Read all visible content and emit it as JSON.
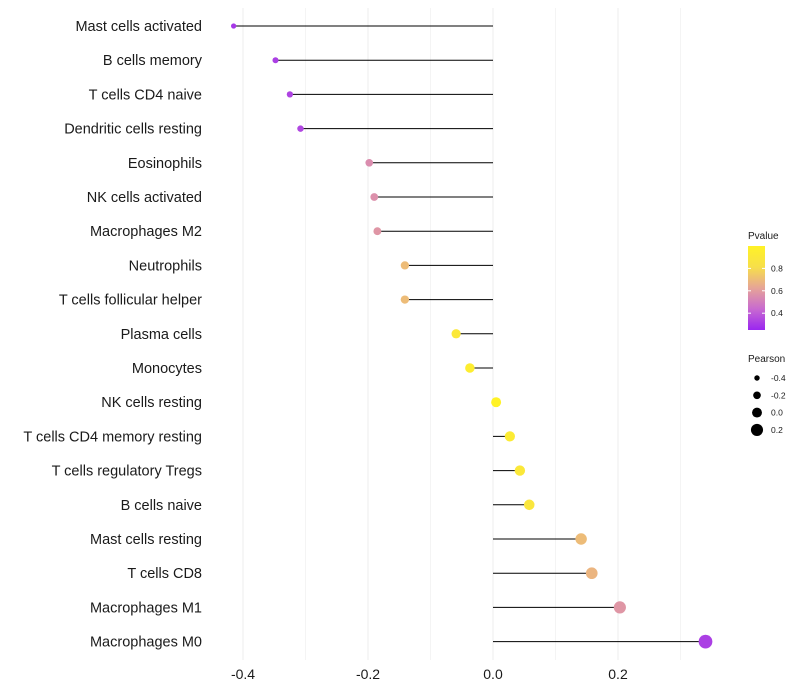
{
  "chart_data": {
    "type": "lollipop",
    "categories": [
      "Mast cells activated",
      "B cells memory",
      "T cells CD4 naive",
      "Dendritic cells resting",
      "Eosinophils",
      "NK cells activated",
      "Macrophages M2",
      "Neutrophils",
      "T cells follicular helper",
      "Plasma cells",
      "Monocytes",
      "NK cells resting",
      "T cells CD4 memory resting",
      "T cells regulatory  Tregs ",
      "B cells naive",
      "Mast cells resting",
      "T cells CD8",
      "Macrophages M1",
      "Macrophages M0"
    ],
    "pearson": [
      -0.415,
      -0.348,
      -0.325,
      -0.308,
      -0.198,
      -0.19,
      -0.185,
      -0.141,
      -0.141,
      -0.059,
      -0.037,
      0.005,
      0.027,
      0.043,
      0.058,
      0.141,
      0.158,
      0.203,
      0.34
    ],
    "pvalue": [
      0.3,
      0.32,
      0.33,
      0.34,
      0.55,
      0.56,
      0.58,
      0.7,
      0.7,
      0.9,
      0.95,
      1.0,
      0.93,
      0.9,
      0.88,
      0.7,
      0.68,
      0.58,
      0.32
    ],
    "xlim": [
      -0.42,
      0.36
    ],
    "x_ticks": [
      -0.4,
      -0.2,
      0.0,
      0.2
    ],
    "x_tick_labels": [
      "-0.4",
      "-0.2",
      "0.0",
      "0.2"
    ],
    "grid": true,
    "legend": {
      "pvalue": {
        "title": "Pvalue",
        "range": [
          0.25,
          1.0
        ],
        "ticks": [
          0.4,
          0.6,
          0.8
        ],
        "tick_labels": [
          "0.4",
          "0.6",
          "0.8"
        ],
        "colors": [
          "#9a26f0",
          "#c86ad0",
          "#e6a497",
          "#f7df4a",
          "#fff226"
        ]
      },
      "pearson": {
        "title": "Pearson",
        "values": [
          -0.4,
          -0.2,
          0.0,
          0.2
        ],
        "labels": [
          "-0.4",
          "-0.2",
          "0.0",
          "0.2"
        ]
      },
      "placement": "right"
    }
  }
}
